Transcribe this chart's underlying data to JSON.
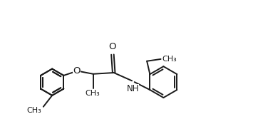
{
  "bg_color": "#ffffff",
  "line_color": "#1a1a1a",
  "line_width": 1.4,
  "font_size": 8.5,
  "fig_width": 3.55,
  "fig_height": 1.88,
  "dpi": 100,
  "xlim": [
    -0.5,
    9.5
  ],
  "ylim": [
    -2.2,
    2.5
  ]
}
